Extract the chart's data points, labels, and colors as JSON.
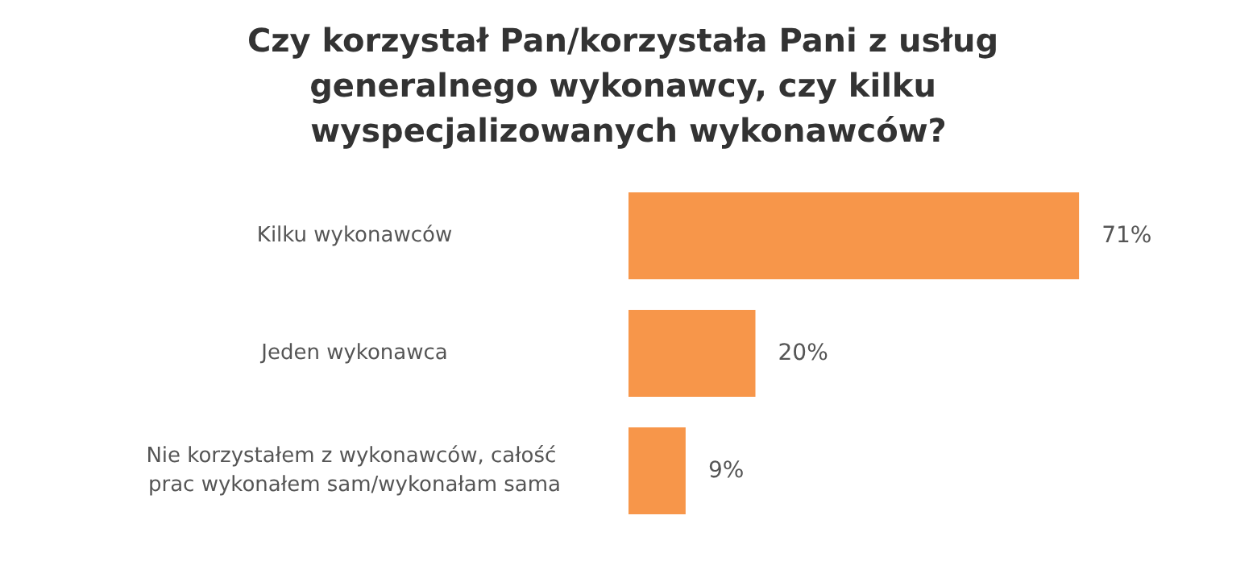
{
  "chart_data": {
    "type": "bar",
    "orientation": "horizontal",
    "title": "Czy korzystał Pan/korzystała Pani z usług generalnego wykonawcy, czy kilku wyspecjalizowanych wykonawców?",
    "categories": [
      "Kilku wykonawców",
      "Jeden wykonawca",
      "Nie korzystałem z wykonawców, całość prac wykonałem sam/wykonałam sama"
    ],
    "values": [
      71,
      20,
      9
    ],
    "value_labels": [
      "71%",
      "20%",
      "9%"
    ],
    "color": "#f7964a"
  }
}
